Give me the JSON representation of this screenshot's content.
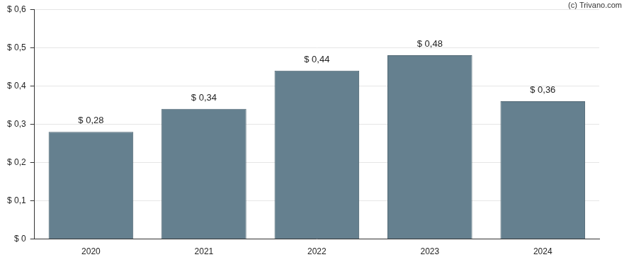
{
  "chart_data": {
    "type": "bar",
    "annotations": [
      "(c) Trivano.com"
    ],
    "categories": [
      "2020",
      "2021",
      "2022",
      "2023",
      "2024"
    ],
    "values": [
      0.28,
      0.34,
      0.44,
      0.48,
      0.36
    ],
    "value_labels": [
      "$ 0,28",
      "$ 0,34",
      "$ 0,44",
      "$ 0,48",
      "$ 0,36"
    ],
    "color": "#65808f",
    "ylim": [
      0,
      0.6
    ],
    "yticks": [
      {
        "value": 0,
        "label": "$ 0"
      },
      {
        "value": 0.1,
        "label": "$ 0,1"
      },
      {
        "value": 0.2,
        "label": "$ 0,2"
      },
      {
        "value": 0.3,
        "label": "$ 0,3"
      },
      {
        "value": 0.4,
        "label": "$ 0,4"
      },
      {
        "value": 0.5,
        "label": "$ 0,5"
      },
      {
        "value": 0.6,
        "label": "$ 0,6"
      }
    ],
    "grid": true,
    "data_labels": true
  }
}
